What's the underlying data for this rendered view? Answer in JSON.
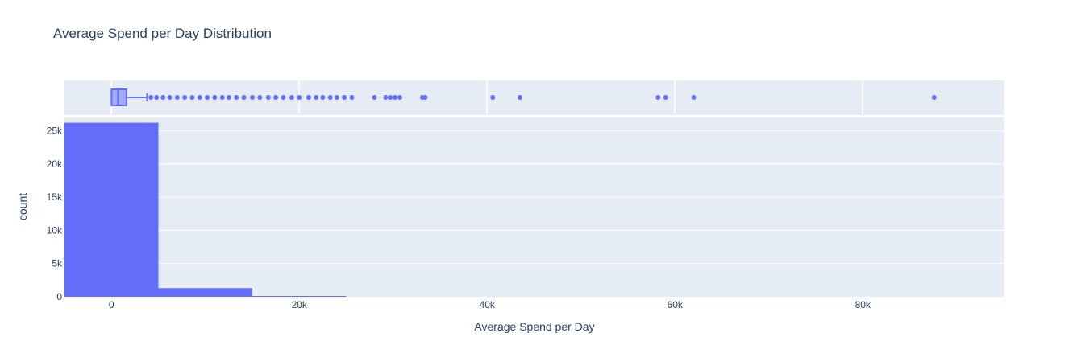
{
  "chart_data": {
    "type": "histogram",
    "title": "Average Spend per Day Distribution",
    "xlabel": "Average Spend per Day",
    "ylabel": "count",
    "xlim": [
      -5000,
      95000
    ],
    "ylim": [
      0,
      27000
    ],
    "grid": true,
    "x_ticks": [
      {
        "value": 0,
        "label": "0"
      },
      {
        "value": 20000,
        "label": "20k"
      },
      {
        "value": 40000,
        "label": "40k"
      },
      {
        "value": 60000,
        "label": "60k"
      },
      {
        "value": 80000,
        "label": "80k"
      }
    ],
    "y_ticks": [
      {
        "value": 0,
        "label": "0"
      },
      {
        "value": 5000,
        "label": "5k"
      },
      {
        "value": 10000,
        "label": "10k"
      },
      {
        "value": 15000,
        "label": "15k"
      },
      {
        "value": 20000,
        "label": "20k"
      },
      {
        "value": 25000,
        "label": "25k"
      }
    ],
    "bins": [
      {
        "start": -5000,
        "end": 5000,
        "count": 26200
      },
      {
        "start": 5000,
        "end": 15000,
        "count": 1300
      },
      {
        "start": 15000,
        "end": 25000,
        "count": 60
      }
    ],
    "box": {
      "min": 0,
      "q1": 100,
      "median": 700,
      "q3": 1500,
      "upper_fence": 3800,
      "outliers": [
        4200,
        4800,
        5500,
        6200,
        7000,
        7800,
        8600,
        9400,
        10200,
        11000,
        11800,
        12500,
        13300,
        14100,
        15000,
        15800,
        16700,
        17500,
        18300,
        19200,
        20000,
        21000,
        21800,
        22500,
        23300,
        24000,
        24800,
        25600,
        28000,
        29200,
        29700,
        30200,
        30700,
        33100,
        33400,
        40600,
        43500,
        58200,
        59000,
        62000,
        87600
      ]
    },
    "colors": {
      "bar": "#636efa",
      "plot_bg": "#e5ecf6",
      "grid": "#ffffff",
      "text": "#2a3f5f"
    }
  }
}
